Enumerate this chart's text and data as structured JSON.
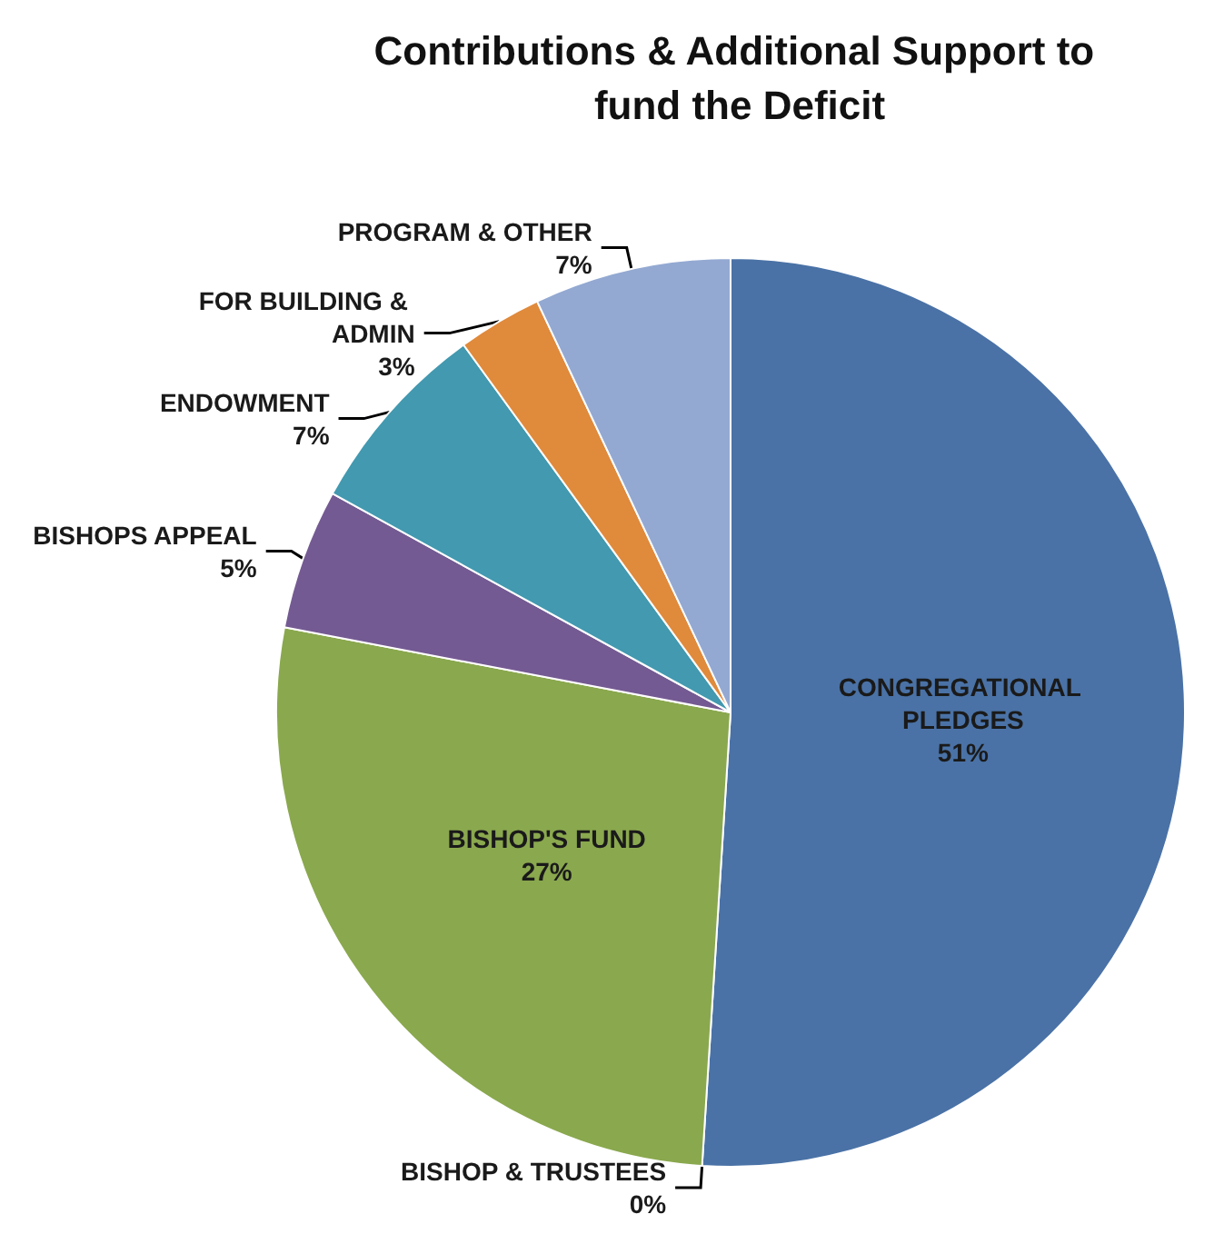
{
  "chart_data": {
    "type": "pie",
    "title": "Contributions & Additional Support to fund the Deficit",
    "categories": [
      "CONGREGATIONAL PLEDGES",
      "BISHOP & TRUSTEES",
      "BISHOP'S FUND",
      "BISHOPS APPEAL",
      "ENDOWMENT",
      "FOR BUILDING & ADMIN",
      "PROGRAM & OTHER"
    ],
    "values": [
      51,
      0,
      27,
      5,
      7,
      3,
      7
    ],
    "colors": [
      "#4a72a6",
      "#c0504d",
      "#8aa84e",
      "#745a92",
      "#4299b0",
      "#e08a3c",
      "#93a9d2"
    ],
    "value_labels": [
      "51%",
      "0%",
      "27%",
      "5%",
      "7%",
      "3%",
      "7%"
    ]
  }
}
